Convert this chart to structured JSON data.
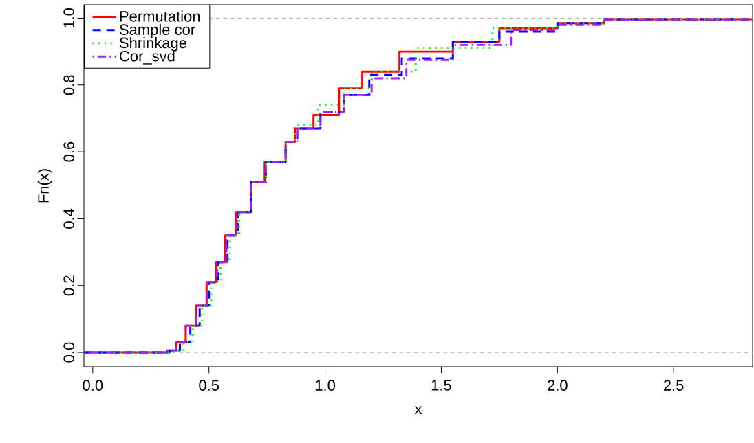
{
  "chart_data": {
    "type": "step",
    "xlabel": "x",
    "ylabel": "Fn(x)",
    "xlim": [
      -0.038,
      2.84
    ],
    "ylim": [
      -0.043,
      1.04
    ],
    "xticks": [
      {
        "value": 0,
        "label": "0.0"
      },
      {
        "value": 0.5,
        "label": "0.5"
      },
      {
        "value": 1,
        "label": "1.0"
      },
      {
        "value": 1.5,
        "label": "1.5"
      },
      {
        "value": 2,
        "label": "2.0"
      },
      {
        "value": 2.5,
        "label": "2.5"
      }
    ],
    "yticks": [
      {
        "value": 0,
        "label": "0.0"
      },
      {
        "value": 0.2,
        "label": "0.2"
      },
      {
        "value": 0.4,
        "label": "0.4"
      },
      {
        "value": 0.6,
        "label": "0.6"
      },
      {
        "value": 0.8,
        "label": "0.8"
      },
      {
        "value": 1,
        "label": "1.0"
      }
    ],
    "legend": "top left",
    "grid": false,
    "ref_lines": [
      {
        "axis": "y",
        "value": 0,
        "color": "#b3b3b3",
        "line_style": "dashed"
      },
      {
        "axis": "y",
        "value": 1,
        "color": "#b3b3b3",
        "line_style": "dashed"
      }
    ],
    "series": [
      {
        "name": "Permutation",
        "color": "#ff0000",
        "line_style": "solid",
        "x": [
          -0.038,
          0.26,
          0.32,
          0.36,
          0.4,
          0.445,
          0.49,
          0.53,
          0.57,
          0.615,
          0.68,
          0.74,
          0.83,
          0.87,
          0.95,
          1.06,
          1.16,
          1.32,
          1.55,
          1.75,
          2.0,
          2.2,
          2.84
        ],
        "values": [
          0,
          0,
          0.006,
          0.03,
          0.08,
          0.14,
          0.21,
          0.27,
          0.35,
          0.42,
          0.51,
          0.57,
          0.63,
          0.67,
          0.71,
          0.79,
          0.84,
          0.9,
          0.93,
          0.97,
          0.985,
          0.997,
          1
        ]
      },
      {
        "name": "Sample cor",
        "color": "#0000ff",
        "line_style": "dashed",
        "x": [
          -0.038,
          0.26,
          0.33,
          0.375,
          0.42,
          0.46,
          0.5,
          0.54,
          0.58,
          0.625,
          0.68,
          0.745,
          0.83,
          0.88,
          0.98,
          1.08,
          1.19,
          1.33,
          1.55,
          1.75,
          2.0,
          2.2,
          2.84
        ],
        "values": [
          0,
          0,
          0.006,
          0.03,
          0.08,
          0.14,
          0.21,
          0.27,
          0.35,
          0.42,
          0.51,
          0.57,
          0.63,
          0.67,
          0.72,
          0.77,
          0.83,
          0.88,
          0.93,
          0.96,
          0.985,
          0.997,
          1
        ]
      },
      {
        "name": "Shrinkage",
        "color": "#00ff00",
        "line_style": "dotted",
        "x": [
          -0.038,
          0.27,
          0.34,
          0.39,
          0.43,
          0.47,
          0.51,
          0.55,
          0.59,
          0.63,
          0.68,
          0.745,
          0.83,
          0.87,
          0.97,
          1.08,
          1.2,
          1.39,
          1.72,
          2.0,
          2.2,
          2.84
        ],
        "values": [
          0,
          0,
          0.006,
          0.03,
          0.08,
          0.14,
          0.21,
          0.27,
          0.35,
          0.42,
          0.51,
          0.57,
          0.63,
          0.68,
          0.74,
          0.79,
          0.84,
          0.91,
          0.97,
          0.985,
          0.997,
          1
        ]
      },
      {
        "name": "Cor_svd",
        "color": "#a020f0",
        "line_style": "dashdot",
        "x": [
          -0.038,
          0.26,
          0.32,
          0.36,
          0.4,
          0.445,
          0.49,
          0.535,
          0.575,
          0.62,
          0.68,
          0.745,
          0.83,
          0.88,
          0.98,
          1.08,
          1.2,
          1.35,
          1.55,
          1.8,
          2.0,
          2.2,
          2.84
        ],
        "values": [
          0,
          0,
          0.006,
          0.03,
          0.08,
          0.14,
          0.21,
          0.27,
          0.35,
          0.42,
          0.51,
          0.57,
          0.63,
          0.67,
          0.72,
          0.77,
          0.82,
          0.875,
          0.92,
          0.965,
          0.98,
          0.995,
          1
        ]
      }
    ]
  }
}
